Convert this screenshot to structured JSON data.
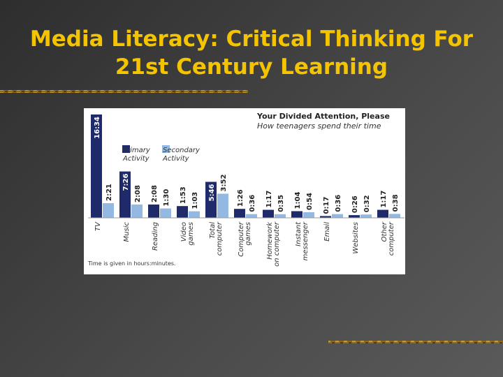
{
  "title_lines": [
    "Media Literacy: Critical Thinking For",
    "21st Century Learning"
  ],
  "chart_data": {
    "type": "bar",
    "title": "Your Divided Attention, Please",
    "subtitle": "How teenagers spend their time",
    "note": "Time is given in hours:minutes.",
    "categories": [
      "TV",
      "Music",
      "Reading",
      "Video games",
      "Total computer",
      "Computer games",
      "Homework on computer",
      "Instant messenger",
      "Email",
      "Websites",
      "Other computer"
    ],
    "series": [
      {
        "name": "Primary Activity",
        "color": "#1f2a6b",
        "values": [
          994,
          446,
          128,
          113,
          346,
          86,
          77,
          64,
          17,
          26,
          77
        ],
        "value_labels": [
          "16:34",
          "7:26",
          "2:08",
          "1:53",
          "5:46",
          "1:26",
          "1:17",
          "1:04",
          "0:17",
          "0:26",
          "1:17"
        ]
      },
      {
        "name": "Secondary Activity",
        "color": "#93b9e2",
        "values": [
          141,
          128,
          90,
          63,
          232,
          36,
          35,
          54,
          36,
          32,
          38
        ],
        "value_labels": [
          "2:21",
          "2:08",
          "1:30",
          "1:03",
          "3:52",
          "0:36",
          "0:35",
          "0:54",
          "0:36",
          "0:32",
          "0:38"
        ]
      }
    ]
  }
}
